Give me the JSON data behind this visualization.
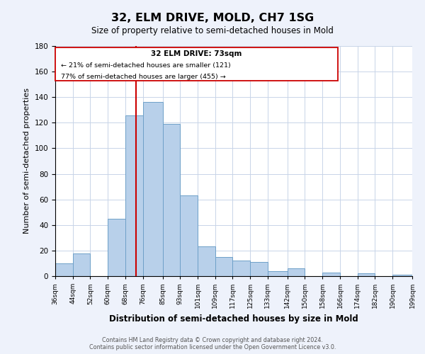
{
  "title": "32, ELM DRIVE, MOLD, CH7 1SG",
  "subtitle": "Size of property relative to semi-detached houses in Mold",
  "xlabel": "Distribution of semi-detached houses by size in Mold",
  "ylabel": "Number of semi-detached properties",
  "bar_color": "#b8d0ea",
  "bar_edge_color": "#6ea0c8",
  "marker_line_color": "#cc0000",
  "marker_value": 73,
  "categories": [
    "36sqm",
    "44sqm",
    "52sqm",
    "60sqm",
    "68sqm",
    "76sqm",
    "85sqm",
    "93sqm",
    "101sqm",
    "109sqm",
    "117sqm",
    "125sqm",
    "133sqm",
    "142sqm",
    "150sqm",
    "158sqm",
    "166sqm",
    "174sqm",
    "182sqm",
    "190sqm",
    "199sqm"
  ],
  "bin_edges": [
    36,
    44,
    52,
    60,
    68,
    76,
    85,
    93,
    101,
    109,
    117,
    125,
    133,
    142,
    150,
    158,
    166,
    174,
    182,
    190,
    199
  ],
  "values": [
    10,
    18,
    0,
    45,
    126,
    136,
    119,
    63,
    23,
    15,
    12,
    11,
    4,
    6,
    0,
    3,
    0,
    2,
    0,
    1
  ],
  "ylim": [
    0,
    180
  ],
  "yticks": [
    0,
    20,
    40,
    60,
    80,
    100,
    120,
    140,
    160,
    180
  ],
  "annotation_title": "32 ELM DRIVE: 73sqm",
  "annotation_line1": "← 21% of semi-detached houses are smaller (121)",
  "annotation_line2": "77% of semi-detached houses are larger (455) →",
  "footer_line1": "Contains HM Land Registry data © Crown copyright and database right 2024.",
  "footer_line2": "Contains public sector information licensed under the Open Government Licence v3.0.",
  "background_color": "#eef2fb",
  "plot_bg_color": "#ffffff",
  "grid_color": "#c8d4e8"
}
